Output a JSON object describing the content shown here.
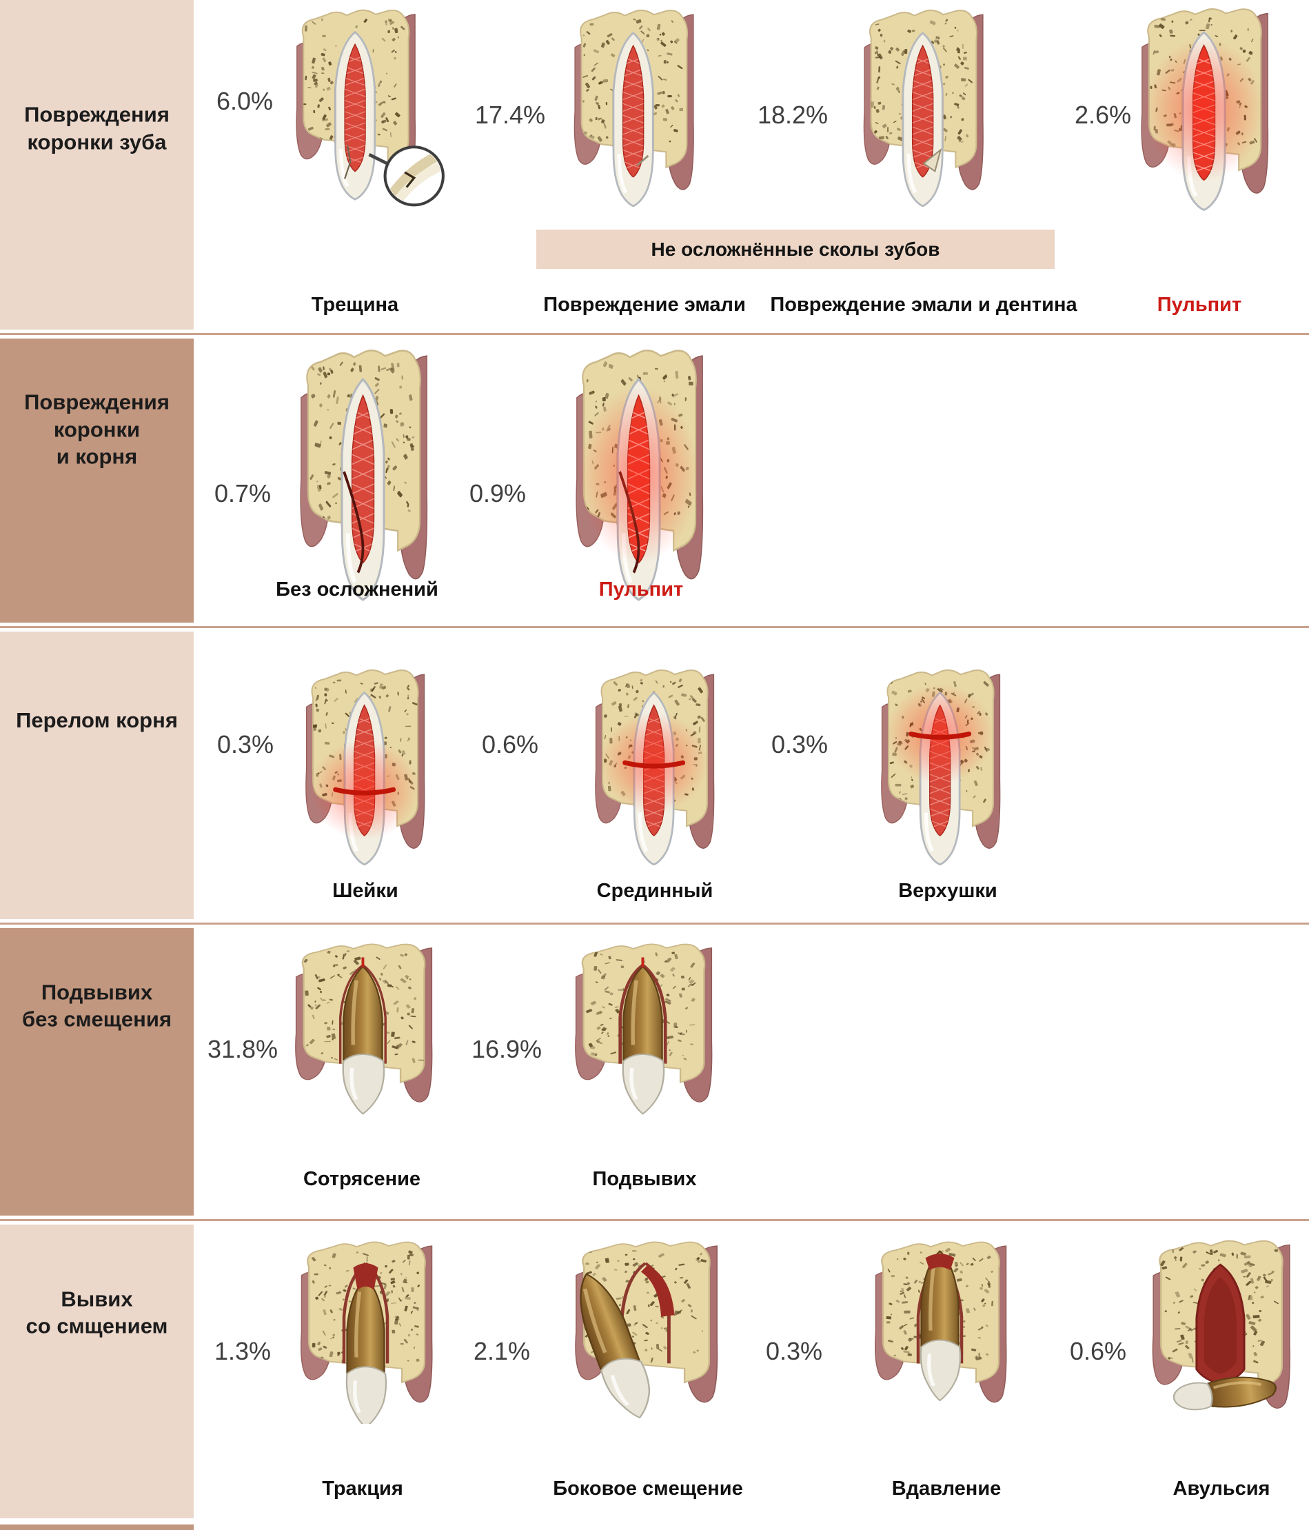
{
  "colors": {
    "sidebar_light": "#ecd8cb",
    "sidebar_dark": "#c2977f",
    "divider": "#c9a28c",
    "banner_bg": "#edd6c6",
    "percent_text": "#3f3f3f",
    "label_text": "#101010",
    "red_label": "#cd1a15",
    "panel_bg": "#ffffff"
  },
  "rows": [
    {
      "sidebar": "Повреждения\nкоронки зуба",
      "banner": "Не осложнённые сколы зубов",
      "cells": [
        {
          "percent": "6.0%",
          "label": "Трещина",
          "art": "section-crack"
        },
        {
          "percent": "17.4%",
          "label": "Повреждение эмали",
          "art": "section-chip1"
        },
        {
          "percent": "18.2%",
          "label": "Повреждение эмали и дентина",
          "art": "section-chip2"
        },
        {
          "percent": "2.6%",
          "label": "Пульпит",
          "red": true,
          "art": "section-pulpitis"
        }
      ]
    },
    {
      "sidebar": "Повреждения\nкоронки\nи корня",
      "cells": [
        {
          "percent": "0.7%",
          "label": "Без осложнений",
          "art": "section-rootcrack"
        },
        {
          "percent": "0.9%",
          "label": "Пульпит",
          "red": true,
          "art": "section-rootcrack-pulpitis"
        }
      ]
    },
    {
      "sidebar": "Перелом корня",
      "cells": [
        {
          "percent": "0.3%",
          "label": "Шейки",
          "art": "section-fx-neck"
        },
        {
          "percent": "0.6%",
          "label": "Срединный",
          "art": "section-fx-mid"
        },
        {
          "percent": "0.3%",
          "label": "Верхушки",
          "art": "section-fx-apex"
        }
      ]
    },
    {
      "sidebar": "Подвывих\nбез смещения",
      "cells": [
        {
          "percent": "31.8%",
          "label": "Сотрясение",
          "art": "external-concussion"
        },
        {
          "percent": "16.9%",
          "label": "Подвывих",
          "art": "external-sublux"
        }
      ]
    },
    {
      "sidebar": "Вывих\nсо смщением",
      "cells": [
        {
          "percent": "1.3%",
          "label": "Тракция",
          "art": "ext-traction"
        },
        {
          "percent": "2.1%",
          "label": "Боковое смещение",
          "art": "ext-lateral"
        },
        {
          "percent": "0.3%",
          "label": "Вдавление",
          "art": "ext-intrusion"
        },
        {
          "percent": "0.6%",
          "label": "Авульсия",
          "art": "avulsion"
        }
      ]
    }
  ]
}
